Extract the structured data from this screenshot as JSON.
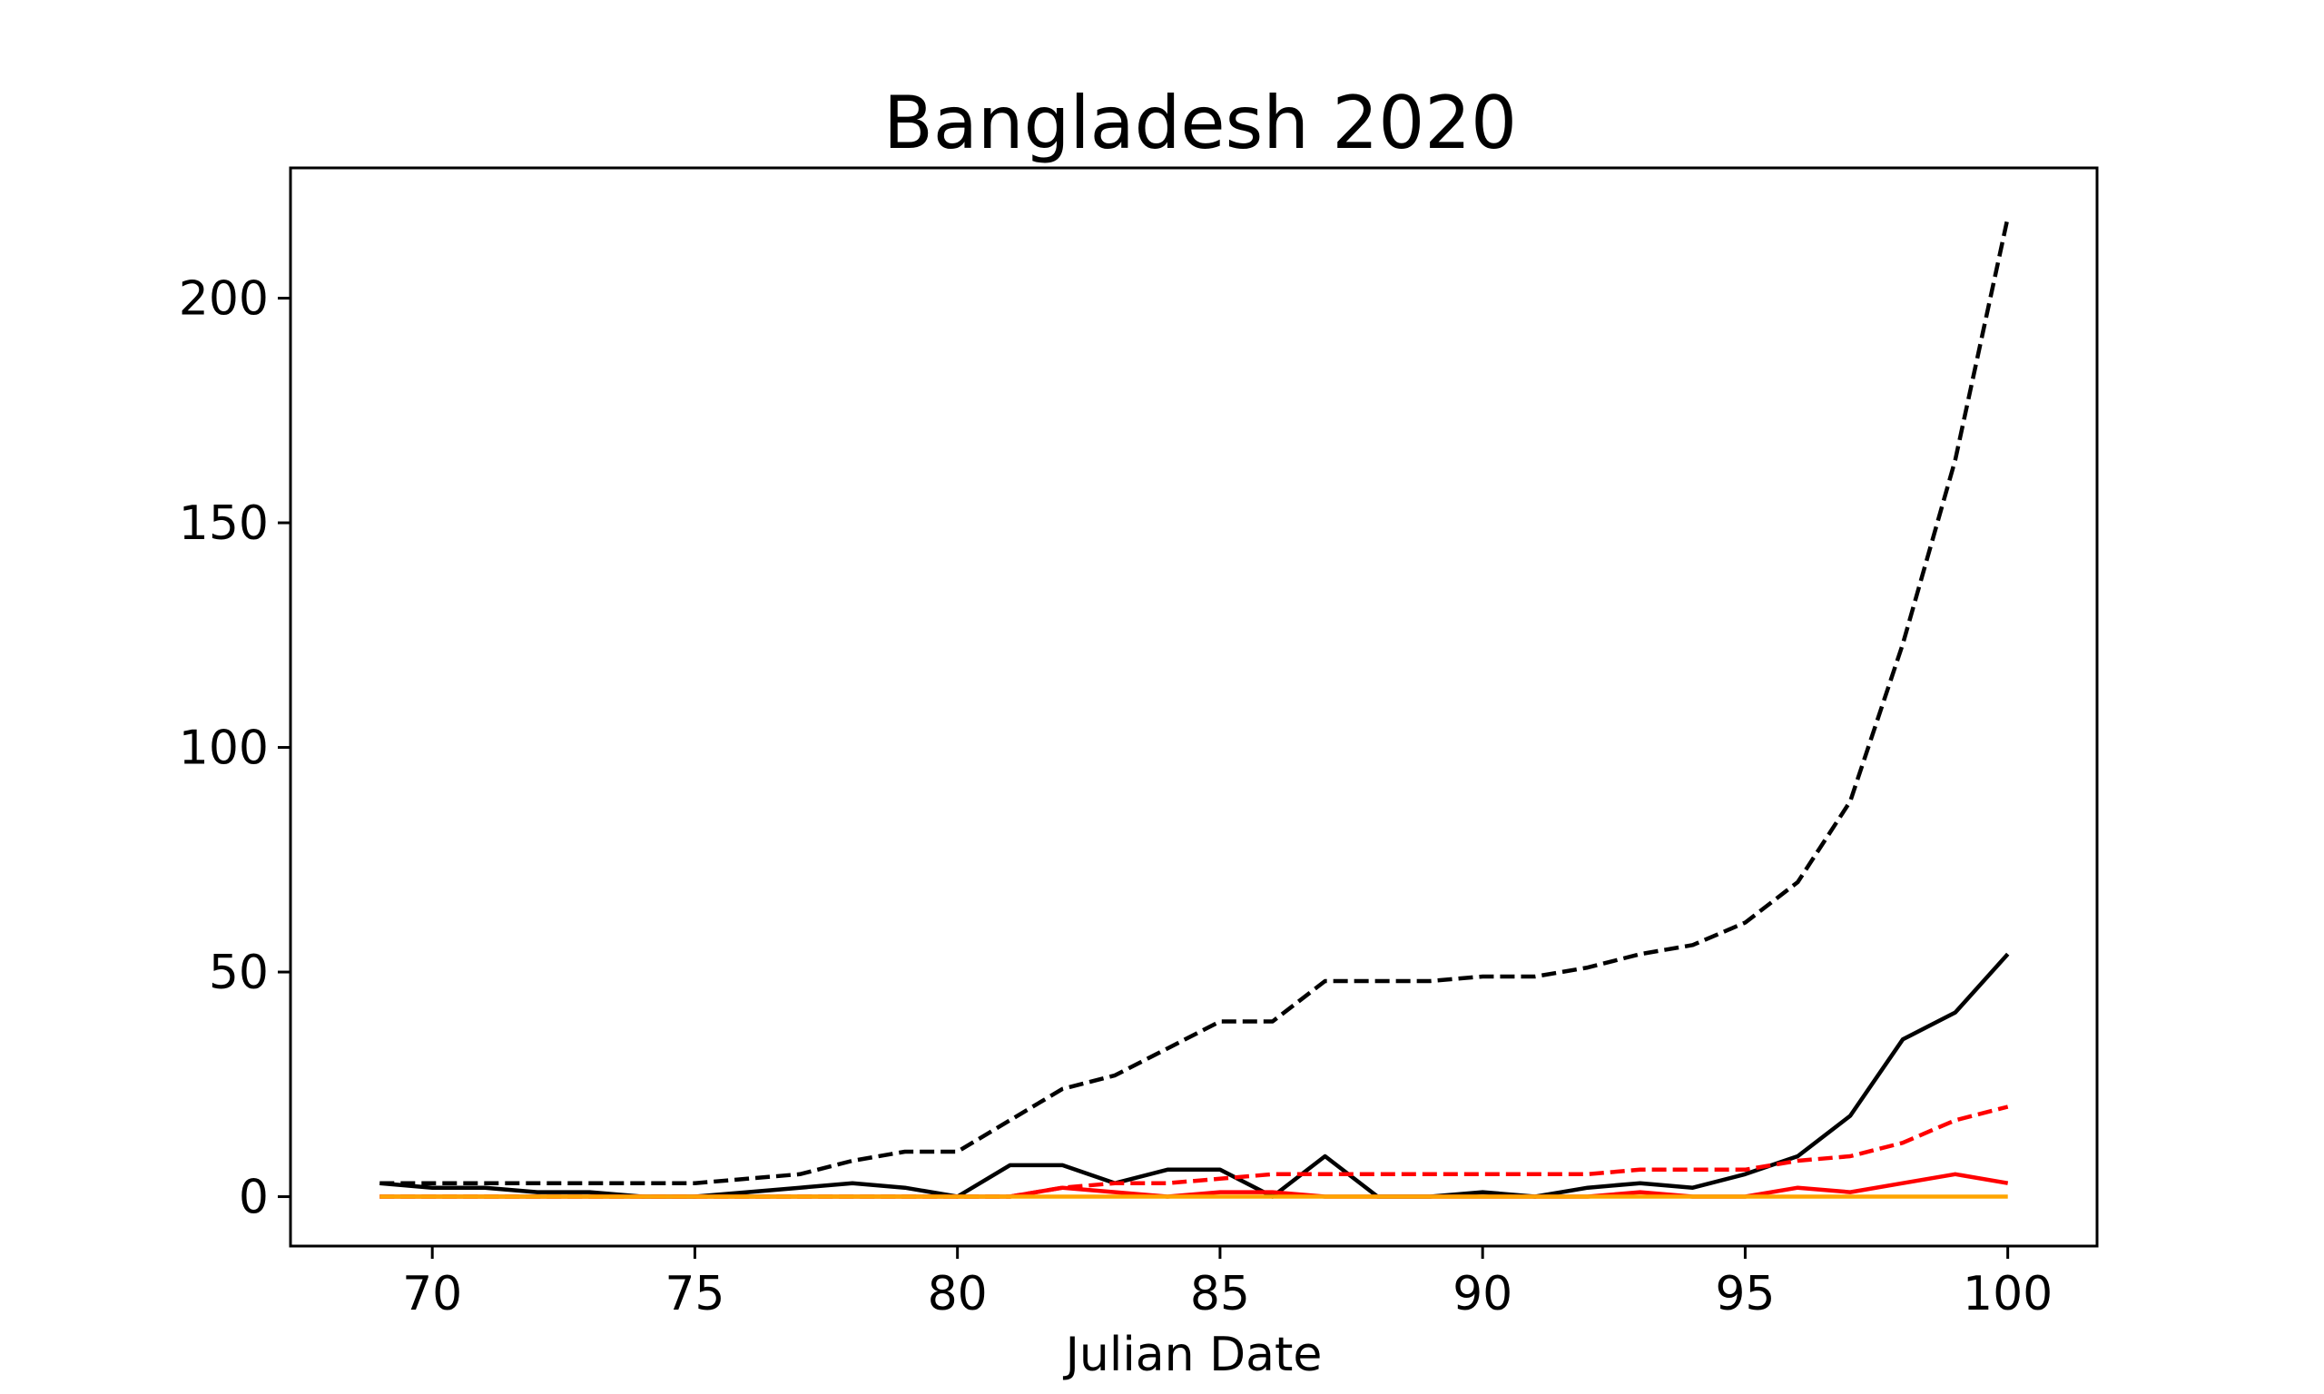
{
  "chart_data": {
    "type": "line",
    "title": "Bangladesh 2020",
    "xlabel": "Julian Date",
    "ylabel": "",
    "xlim": [
      67.3,
      101.7
    ],
    "ylim": [
      -11,
      229
    ],
    "xticks": [
      70,
      75,
      80,
      85,
      90,
      95,
      100
    ],
    "yticks": [
      0,
      50,
      100,
      150,
      200
    ],
    "grid": false,
    "x": [
      69,
      70,
      71,
      72,
      73,
      74,
      75,
      76,
      77,
      78,
      79,
      80,
      81,
      82,
      83,
      84,
      85,
      86,
      87,
      88,
      89,
      90,
      91,
      92,
      93,
      94,
      95,
      96,
      97,
      98,
      99,
      100
    ],
    "series": [
      {
        "color": "#000000",
        "dash": true,
        "values": [
          3,
          3,
          3,
          3,
          3,
          3,
          3,
          4,
          5,
          8,
          10,
          10,
          17,
          24,
          27,
          33,
          39,
          39,
          48,
          48,
          48,
          49,
          49,
          51,
          54,
          56,
          61,
          70,
          88,
          123,
          164,
          218
        ]
      },
      {
        "color": "#000000",
        "dash": false,
        "values": [
          3,
          2,
          2,
          1,
          1,
          0,
          0,
          1,
          2,
          3,
          2,
          0,
          7,
          7,
          3,
          6,
          6,
          0,
          9,
          0,
          0,
          1,
          0,
          2,
          3,
          2,
          5,
          9,
          18,
          35,
          41,
          54
        ]
      },
      {
        "color": "#ff0000",
        "dash": true,
        "values": [
          0,
          0,
          0,
          0,
          0,
          0,
          0,
          0,
          0,
          0,
          0,
          0,
          0,
          2,
          3,
          3,
          4,
          5,
          5,
          5,
          5,
          5,
          5,
          5,
          6,
          6,
          6,
          8,
          9,
          12,
          17,
          20
        ]
      },
      {
        "color": "#ff0000",
        "dash": false,
        "values": [
          0,
          0,
          0,
          0,
          0,
          0,
          0,
          0,
          0,
          0,
          0,
          0,
          0,
          2,
          1,
          0,
          1,
          1,
          0,
          0,
          0,
          0,
          0,
          0,
          1,
          0,
          0,
          2,
          1,
          3,
          5,
          3
        ]
      },
      {
        "color": "#ffa500",
        "dash": false,
        "values": [
          0,
          0,
          0,
          0,
          0,
          0,
          0,
          0,
          0,
          0,
          0,
          0,
          0,
          0,
          0,
          0,
          0,
          0,
          0,
          0,
          0,
          0,
          0,
          0,
          0,
          0,
          0,
          0,
          0,
          0,
          0,
          0
        ]
      }
    ]
  }
}
